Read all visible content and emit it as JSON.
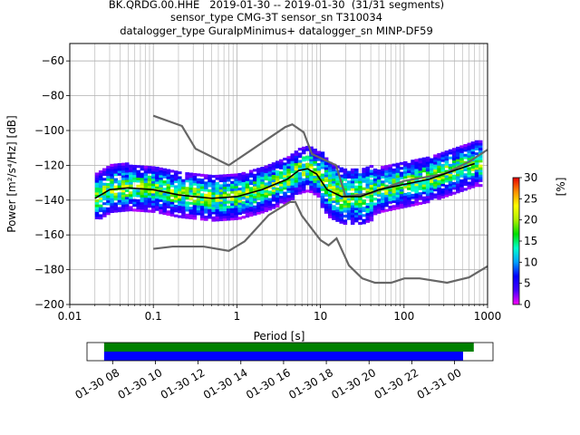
{
  "title": {
    "line1": "BK.QRDG.00.HHE   2019-01-30 -- 2019-01-30  (31/31 segments)",
    "line2": "sensor_type CMG-3T sensor_sn T310034",
    "line3": "datalogger_type GuralpMinimus+ datalogger_sn MINP-DF59"
  },
  "chart_data": [
    {
      "type": "heatmap",
      "xlabel": "Period [s]",
      "ylabel": "Power [m²/s⁴/Hz] [dB]",
      "xscale": "log",
      "xlim": [
        0.01,
        1000
      ],
      "ylim": [
        -200,
        -50
      ],
      "grid": true,
      "x_ticks": [
        0.01,
        0.1,
        1,
        10,
        100,
        1000
      ],
      "x_tick_labels": [
        "0.01",
        "0.1",
        "1",
        "10",
        "100",
        "1000"
      ],
      "y_ticks": [
        -200,
        -180,
        -160,
        -140,
        -120,
        -100,
        -80,
        -60
      ],
      "y_tick_labels": [
        "−200",
        "−180",
        "−160",
        "−140",
        "−120",
        "−100",
        "−80",
        "−60"
      ],
      "colorbar": {
        "label": "[%]",
        "range": [
          0,
          30
        ],
        "ticks": [
          0,
          5,
          10,
          15,
          20,
          25,
          30
        ],
        "colors": [
          "#ff00ff",
          "#4400ff",
          "#0000ff",
          "#00a0ff",
          "#00ffcc",
          "#00e000",
          "#b0f000",
          "#ffff00",
          "#ff9000",
          "#e80000"
        ]
      },
      "mean_curve": [
        [
          0.02,
          -139
        ],
        [
          0.03,
          -134
        ],
        [
          0.05,
          -133
        ],
        [
          0.1,
          -134
        ],
        [
          0.2,
          -137
        ],
        [
          0.5,
          -139
        ],
        [
          1,
          -138
        ],
        [
          2,
          -134
        ],
        [
          4,
          -128
        ],
        [
          5.5,
          -123
        ],
        [
          7,
          -122
        ],
        [
          9,
          -125
        ],
        [
          12,
          -134
        ],
        [
          18,
          -138
        ],
        [
          30,
          -138
        ],
        [
          50,
          -134
        ],
        [
          100,
          -131
        ],
        [
          200,
          -128
        ],
        [
          400,
          -123
        ],
        [
          700,
          -119
        ]
      ],
      "nhnm": [
        [
          0.1,
          -91.5
        ],
        [
          0.22,
          -97.4
        ],
        [
          0.32,
          -110.5
        ],
        [
          0.8,
          -120
        ],
        [
          3.8,
          -98
        ],
        [
          4.6,
          -96.5
        ],
        [
          6.3,
          -101
        ],
        [
          7.9,
          -113.5
        ],
        [
          15.4,
          -120
        ],
        [
          20,
          -138
        ],
        [
          40,
          -136
        ],
        [
          100,
          -129
        ],
        [
          300,
          -125
        ],
        [
          600,
          -118
        ],
        [
          1000,
          -111
        ]
      ],
      "nlnm": [
        [
          0.1,
          -168
        ],
        [
          0.17,
          -166.7
        ],
        [
          0.4,
          -166.7
        ],
        [
          0.8,
          -169.2
        ],
        [
          1.24,
          -163.7
        ],
        [
          2.4,
          -148.6
        ],
        [
          4.3,
          -141.1
        ],
        [
          5,
          -141.1
        ],
        [
          6,
          -149
        ],
        [
          10,
          -163
        ],
        [
          12.5,
          -166
        ],
        [
          15.6,
          -162
        ],
        [
          21.9,
          -177.5
        ],
        [
          31.6,
          -185
        ],
        [
          45,
          -187.5
        ],
        [
          70,
          -187.5
        ],
        [
          101,
          -185
        ],
        [
          154,
          -185
        ],
        [
          328,
          -187.5
        ],
        [
          600,
          -184.4
        ],
        [
          1000,
          -178
        ]
      ]
    },
    {
      "type": "timeline",
      "tick_labels": [
        "01-30 08",
        "01-30 10",
        "01-30 12",
        "01-30 14",
        "01-30 16",
        "01-30 18",
        "01-30 20",
        "01-30 22",
        "01-31 00"
      ],
      "bars": [
        {
          "color": "#008000",
          "start_hour": 7.6,
          "end_hour": 24.9
        },
        {
          "color": "#0000ff",
          "start_hour": 7.6,
          "end_hour": 24.4
        }
      ],
      "xlim_hours": [
        6.8,
        25.8
      ]
    }
  ]
}
